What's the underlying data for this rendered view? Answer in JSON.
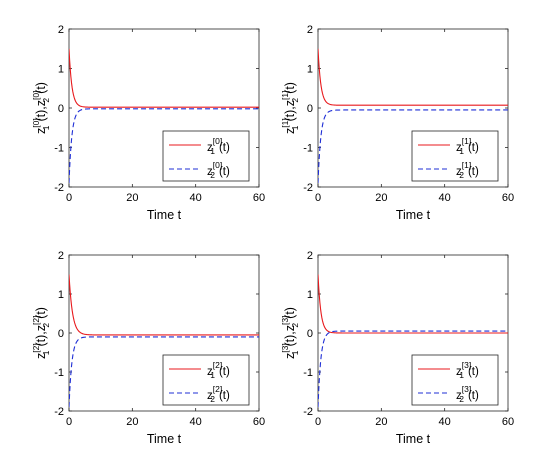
{
  "chart_data": [
    {
      "type": "line",
      "xlabel": "Time t",
      "ylabel": {
        "base1": "z",
        "sub1": "1",
        "sup1": "[0]",
        "sep": "(t),",
        "base2": "z",
        "sub2": "2",
        "sup2": "[0]",
        "tail": "(t)"
      },
      "xlim": [
        0,
        60
      ],
      "ylim": [
        -2,
        2
      ],
      "xticks": [
        "0",
        "20",
        "40",
        "60"
      ],
      "yticks": [
        "2",
        "1",
        "0",
        "-1",
        "-2"
      ],
      "legend_position": "bottom-right",
      "series": [
        {
          "name": {
            "base": "z",
            "sub": "1",
            "sup": "[0]",
            "tail": "(t)"
          },
          "color": "#e8191c",
          "style": "solid",
          "start": 1.5,
          "final": 0.02,
          "rate": 1.1
        },
        {
          "name": {
            "base": "z",
            "sub": "2",
            "sup": "[0]",
            "tail": "(t)"
          },
          "color": "#1f2fd6",
          "style": "dashed",
          "start": -1.9,
          "final": -0.02,
          "rate": 1.1
        }
      ]
    },
    {
      "type": "line",
      "xlabel": "Time t",
      "ylabel": {
        "base1": "z",
        "sub1": "1",
        "sup1": "[1]",
        "sep": "(t),",
        "base2": "z",
        "sub2": "2",
        "sup2": "[1]",
        "tail": "(t)"
      },
      "xlim": [
        0,
        60
      ],
      "ylim": [
        -2,
        2
      ],
      "xticks": [
        "0",
        "20",
        "40",
        "60"
      ],
      "yticks": [
        "2",
        "1",
        "0",
        "-1",
        "-2"
      ],
      "legend_position": "bottom-right",
      "series": [
        {
          "name": {
            "base": "z",
            "sub": "1",
            "sup": "[1]",
            "tail": "(t)"
          },
          "color": "#e8191c",
          "style": "solid",
          "start": 1.5,
          "final": 0.07,
          "rate": 1.1
        },
        {
          "name": {
            "base": "z",
            "sub": "2",
            "sup": "[1]",
            "tail": "(t)"
          },
          "color": "#1f2fd6",
          "style": "dashed",
          "start": -1.9,
          "final": -0.05,
          "rate": 1.1
        }
      ]
    },
    {
      "type": "line",
      "xlabel": "Time t",
      "ylabel": {
        "base1": "z",
        "sub1": "1",
        "sup1": "[2]",
        "sep": "(t),",
        "base2": "z",
        "sub2": "2",
        "sup2": "[2]",
        "tail": "(t)"
      },
      "xlim": [
        0,
        60
      ],
      "ylim": [
        -2,
        2
      ],
      "xticks": [
        "0",
        "20",
        "40",
        "60"
      ],
      "yticks": [
        "2",
        "1",
        "0",
        "-1",
        "-2"
      ],
      "legend_position": "bottom-right",
      "series": [
        {
          "name": {
            "base": "z",
            "sub": "1",
            "sup": "[2]",
            "tail": "(t)"
          },
          "color": "#e8191c",
          "style": "solid",
          "start": 1.5,
          "final": -0.05,
          "rate": 0.9
        },
        {
          "name": {
            "base": "z",
            "sub": "2",
            "sup": "[2]",
            "tail": "(t)"
          },
          "color": "#1f2fd6",
          "style": "dashed",
          "start": -1.9,
          "final": -0.1,
          "rate": 1.1
        }
      ]
    },
    {
      "type": "line",
      "xlabel": "Time t",
      "ylabel": {
        "base1": "z",
        "sub1": "1",
        "sup1": "[3]",
        "sep": "(t),",
        "base2": "z",
        "sub2": "2",
        "sup2": "[3]",
        "tail": "(t)"
      },
      "xlim": [
        0,
        60
      ],
      "ylim": [
        -2,
        2
      ],
      "xticks": [
        "0",
        "20",
        "40",
        "60"
      ],
      "yticks": [
        "2",
        "1",
        "0",
        "-1",
        "-2"
      ],
      "legend_position": "bottom-right",
      "series": [
        {
          "name": {
            "base": "z",
            "sub": "1",
            "sup": "[3]",
            "tail": "(t)"
          },
          "color": "#e8191c",
          "style": "solid",
          "start": 1.5,
          "final": 0.0,
          "rate": 1.1
        },
        {
          "name": {
            "base": "z",
            "sub": "2",
            "sup": "[3]",
            "tail": "(t)"
          },
          "color": "#1f2fd6",
          "style": "dashed",
          "start": -1.9,
          "final": 0.05,
          "rate": 1.1
        }
      ]
    }
  ]
}
